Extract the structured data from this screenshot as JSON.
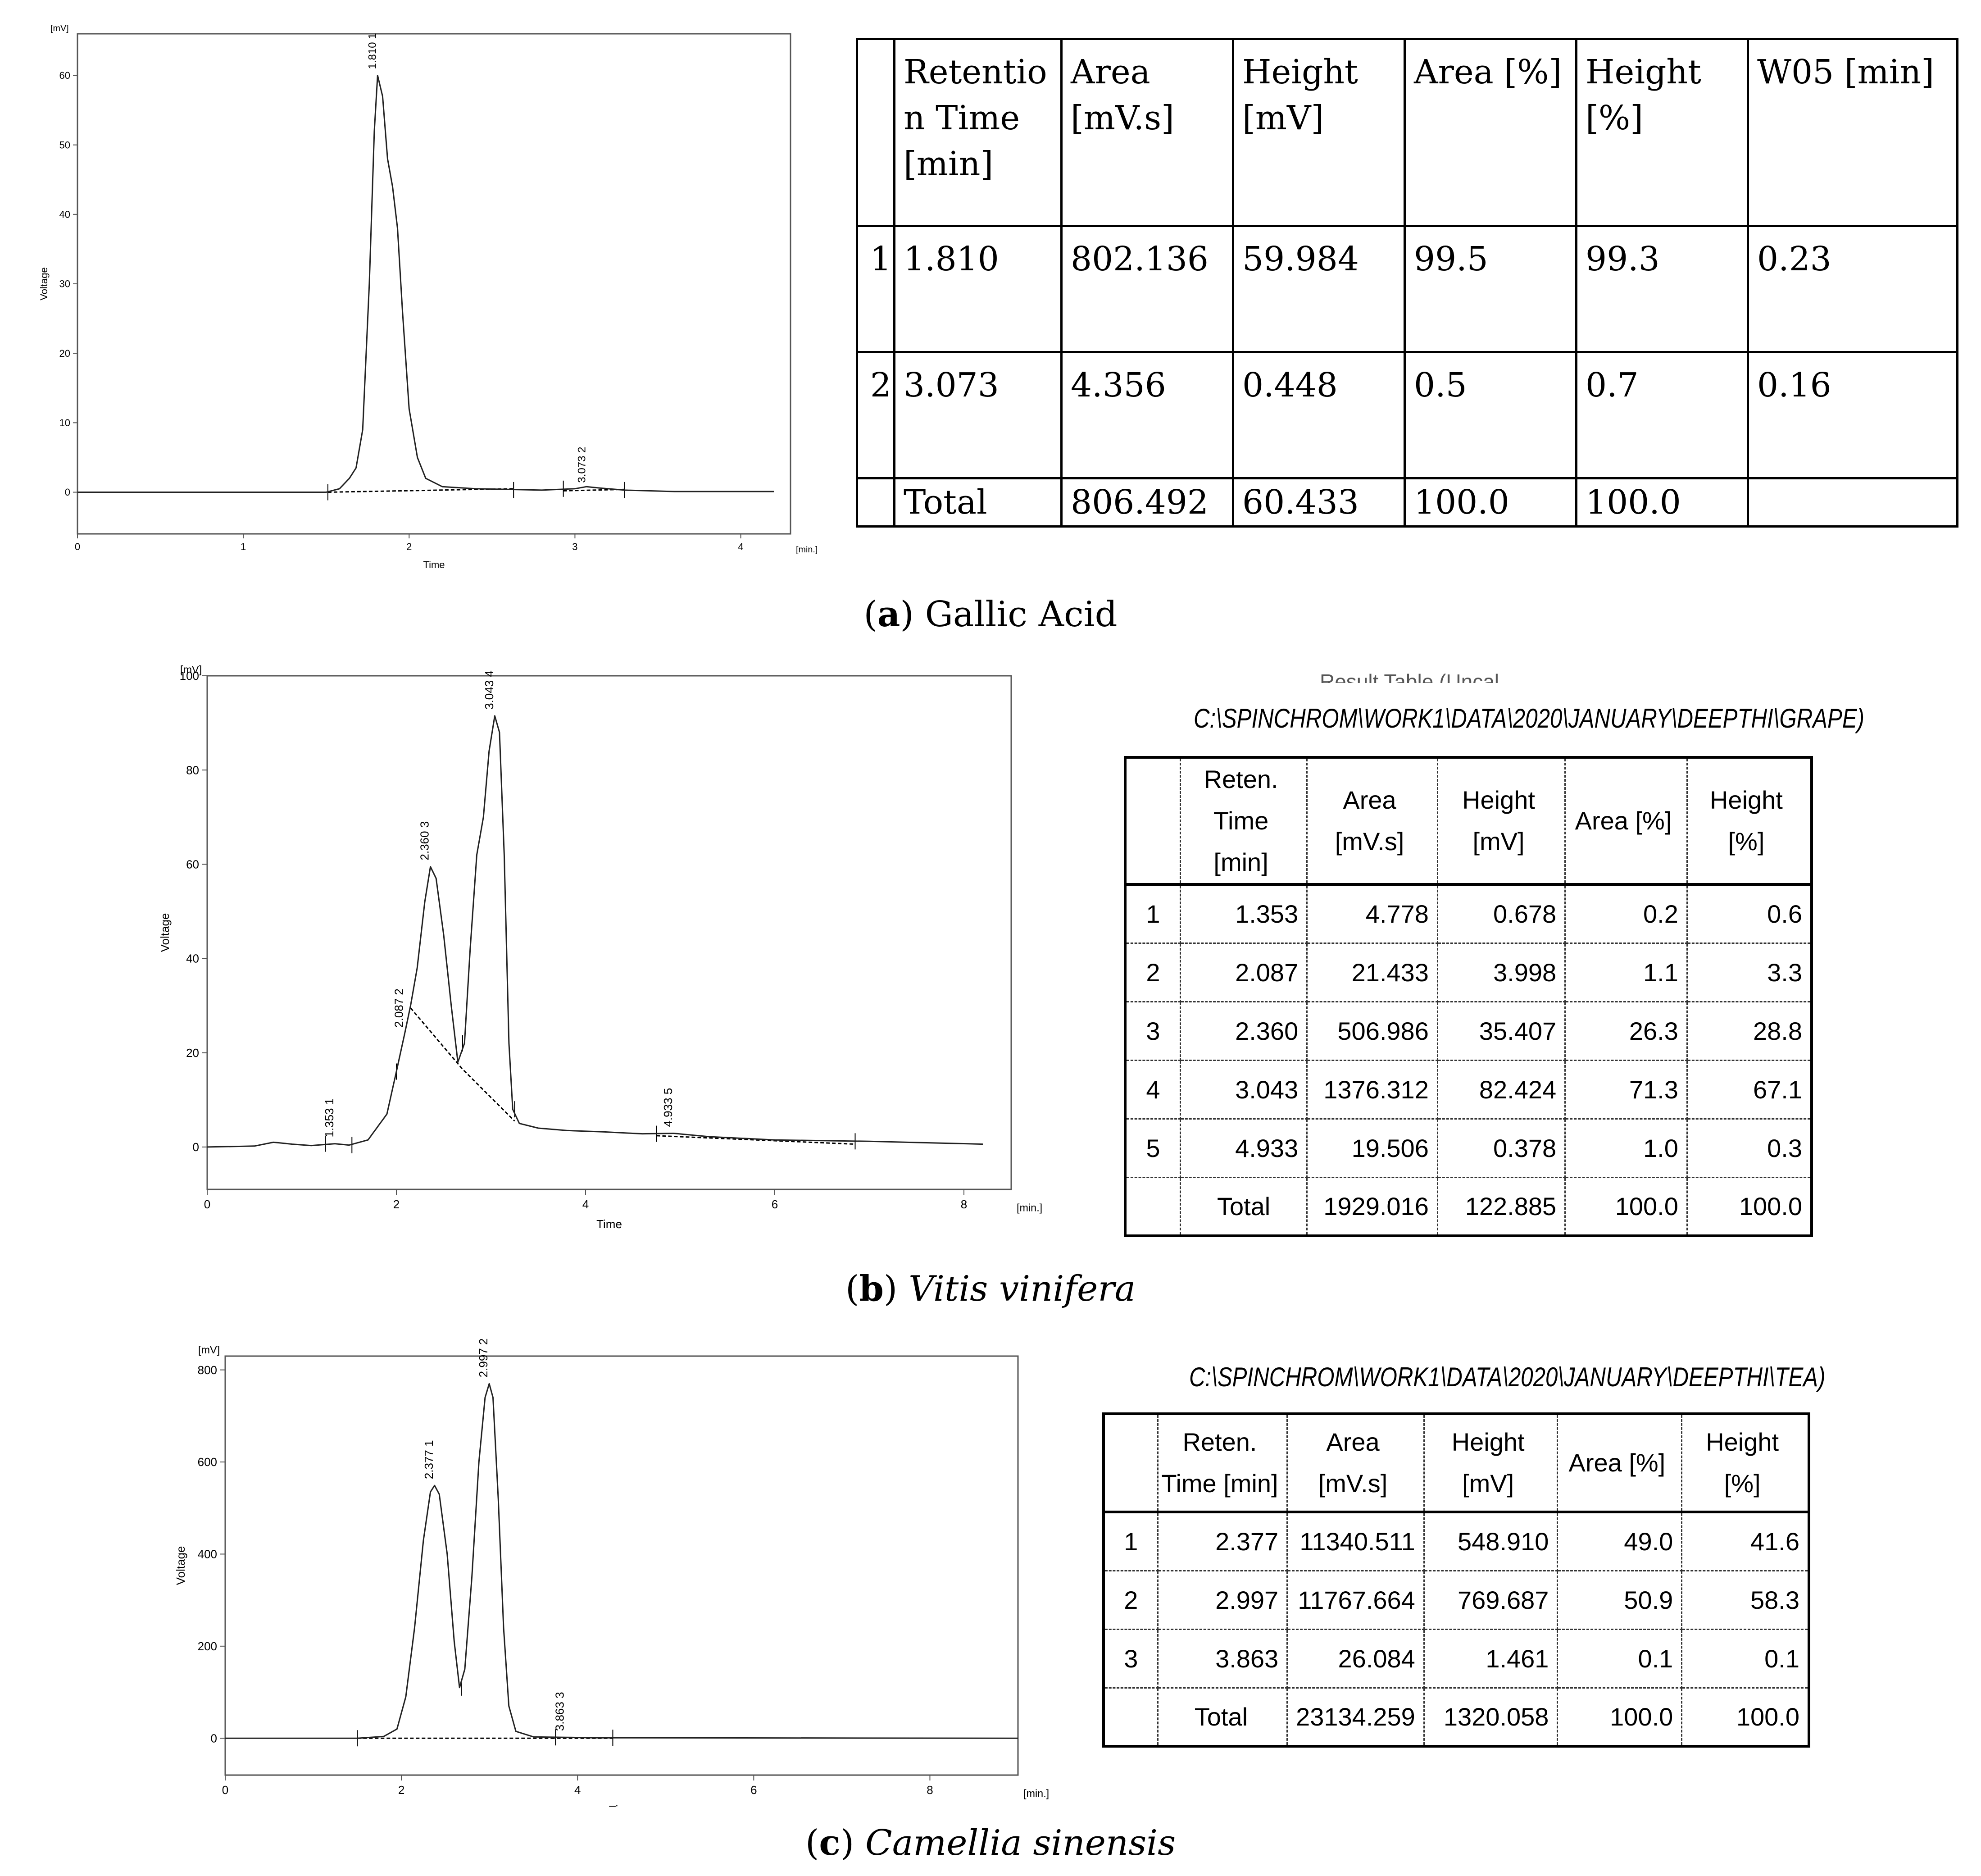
{
  "panels": [
    {
      "id": "a",
      "caption": {
        "letter": "a",
        "name": "Gallic Acid",
        "italic": false
      },
      "table": {
        "headers": [
          "",
          "Retentio n Time [min]",
          "Area [mV.s]",
          "Height [mV]",
          "Area [%]",
          "Height [%]",
          "W05 [min]"
        ],
        "rows": [
          [
            "1",
            "1.810",
            "802.136",
            "59.984",
            "99.5",
            "99.3",
            "0.23"
          ],
          [
            "2",
            "3.073",
            "4.356",
            "0.448",
            "0.5",
            "0.7",
            "0.16"
          ],
          [
            "",
            "Total",
            "806.492",
            "60.433",
            "100.0",
            "100.0",
            ""
          ]
        ]
      }
    },
    {
      "id": "b",
      "caption": {
        "letter": "b",
        "name": "Vitis vinifera",
        "italic": true
      },
      "table_path": "C:\\SPINCHROM\\WORK1\\DATA\\2020\\JANUARY\\DEEPTHI\\GRAPE)",
      "table_title_cut": "Result Table (Uncal",
      "table": {
        "headers": [
          "",
          "Reten. Time [min]",
          "Area [mV.s]",
          "Height [mV]",
          "Area [%]",
          "Height [%]"
        ],
        "rows": [
          [
            "1",
            "1.353",
            "4.778",
            "0.678",
            "0.2",
            "0.6"
          ],
          [
            "2",
            "2.087",
            "21.433",
            "3.998",
            "1.1",
            "3.3"
          ],
          [
            "3",
            "2.360",
            "506.986",
            "35.407",
            "26.3",
            "28.8"
          ],
          [
            "4",
            "3.043",
            "1376.312",
            "82.424",
            "71.3",
            "67.1"
          ],
          [
            "5",
            "4.933",
            "19.506",
            "0.378",
            "1.0",
            "0.3"
          ],
          [
            "",
            "Total",
            "1929.016",
            "122.885",
            "100.0",
            "100.0"
          ]
        ]
      }
    },
    {
      "id": "c",
      "caption": {
        "letter": "c",
        "name": "Camellia sinensis",
        "italic": true
      },
      "table_path": "C:\\SPINCHROM\\WORK1\\DATA\\2020\\JANUARY\\DEEPTHI\\TEA)",
      "table": {
        "headers": [
          "",
          "Reten. Time [min]",
          "Area [mV.s]",
          "Height [mV]",
          "Area [%]",
          "Height [%]"
        ],
        "rows": [
          [
            "1",
            "2.377",
            "11340.511",
            "548.910",
            "49.0",
            "41.6"
          ],
          [
            "2",
            "2.997",
            "11767.664",
            "769.687",
            "50.9",
            "58.3"
          ],
          [
            "3",
            "3.863",
            "26.084",
            "1.461",
            "0.1",
            "0.1"
          ],
          [
            "",
            "Total",
            "23134.259",
            "1320.058",
            "100.0",
            "100.0"
          ]
        ]
      }
    }
  ],
  "chart_data": [
    {
      "type": "line",
      "id": "a",
      "xlabel": "Time",
      "ylabel": "Voltage",
      "x_unit": "[min.]",
      "y_unit": "[mV]",
      "xlim": [
        0,
        4.3
      ],
      "ylim": [
        -6,
        66
      ],
      "xticks": [
        0,
        1,
        2,
        3,
        4
      ],
      "yticks": [
        0,
        10,
        20,
        30,
        40,
        50,
        60
      ],
      "trace": [
        [
          0,
          0
        ],
        [
          1.5,
          0
        ],
        [
          1.58,
          0.5
        ],
        [
          1.64,
          2
        ],
        [
          1.68,
          3.5
        ],
        [
          1.72,
          9
        ],
        [
          1.76,
          30
        ],
        [
          1.79,
          52
        ],
        [
          1.81,
          60
        ],
        [
          1.84,
          57
        ],
        [
          1.87,
          48
        ],
        [
          1.9,
          44
        ],
        [
          1.93,
          38
        ],
        [
          1.96,
          26
        ],
        [
          2.0,
          12
        ],
        [
          2.05,
          5
        ],
        [
          2.1,
          2
        ],
        [
          2.2,
          0.8
        ],
        [
          2.4,
          0.5
        ],
        [
          2.8,
          0.3
        ],
        [
          3.0,
          0.5
        ],
        [
          3.07,
          0.8
        ],
        [
          3.15,
          0.6
        ],
        [
          3.3,
          0.3
        ],
        [
          3.6,
          0.1
        ],
        [
          4.2,
          0.1
        ]
      ],
      "baselines": [
        [
          [
            1.51,
            0
          ],
          [
            2.63,
            0.5
          ]
        ],
        [
          [
            2.93,
            0.2
          ],
          [
            3.3,
            0.4
          ]
        ]
      ],
      "markers": [
        1.51,
        2.63,
        2.93,
        3.3
      ],
      "peaks": [
        {
          "x": 1.81,
          "y": 60,
          "label": "1.810 1"
        },
        {
          "x": 3.073,
          "y": 0.45,
          "label": "3.073 2"
        }
      ]
    },
    {
      "type": "line",
      "id": "b",
      "xlabel": "Time",
      "ylabel": "Voltage",
      "x_unit": "[min.]",
      "y_unit": "[mV]",
      "xlim": [
        0,
        8.5
      ],
      "ylim": [
        -9,
        100
      ],
      "xticks": [
        0,
        2,
        4,
        6,
        8
      ],
      "yticks": [
        0,
        20,
        40,
        60,
        80,
        100
      ],
      "ytick_labels": [
        "0",
        "20",
        "40",
        "60",
        "80",
        "100"
      ],
      "trace": [
        [
          0,
          0
        ],
        [
          0.5,
          0.2
        ],
        [
          0.7,
          1
        ],
        [
          0.9,
          0.6
        ],
        [
          1.1,
          0.3
        ],
        [
          1.35,
          0.7
        ],
        [
          1.5,
          0.4
        ],
        [
          1.7,
          1.5
        ],
        [
          1.9,
          7
        ],
        [
          2.0,
          16
        ],
        [
          2.087,
          24
        ],
        [
          2.15,
          30
        ],
        [
          2.22,
          38
        ],
        [
          2.3,
          52
        ],
        [
          2.36,
          59.5
        ],
        [
          2.42,
          57
        ],
        [
          2.5,
          45
        ],
        [
          2.58,
          30
        ],
        [
          2.65,
          18
        ],
        [
          2.72,
          22
        ],
        [
          2.78,
          42
        ],
        [
          2.85,
          62
        ],
        [
          2.92,
          70
        ],
        [
          2.98,
          84
        ],
        [
          3.04,
          91.5
        ],
        [
          3.09,
          88
        ],
        [
          3.14,
          62
        ],
        [
          3.19,
          22
        ],
        [
          3.23,
          8
        ],
        [
          3.3,
          5
        ],
        [
          3.5,
          4
        ],
        [
          3.8,
          3.5
        ],
        [
          4.2,
          3.2
        ],
        [
          4.6,
          2.8
        ],
        [
          4.93,
          2.9
        ],
        [
          5.3,
          2.2
        ],
        [
          6.0,
          1.5
        ],
        [
          7.0,
          1.2
        ],
        [
          8.2,
          0.6
        ]
      ],
      "baselines": [
        [
          [
            2.15,
            29.5
          ],
          [
            2.7,
            16.5
          ],
          [
            3.25,
            5.5
          ]
        ],
        [
          [
            4.75,
            2.4
          ],
          [
            6.85,
            0.6
          ]
        ]
      ],
      "markers": [
        1.25,
        1.53,
        2.0,
        2.7,
        3.25,
        4.75,
        6.85
      ],
      "peaks": [
        {
          "x": 1.353,
          "y": 0.7,
          "label": "1.353  1"
        },
        {
          "x": 2.087,
          "y": 24,
          "label": "2.087  2"
        },
        {
          "x": 2.36,
          "y": 59.5,
          "label": "2.360  3"
        },
        {
          "x": 3.043,
          "y": 91.5,
          "label": "3.043  4"
        },
        {
          "x": 4.933,
          "y": 2.9,
          "label": "4.933  5"
        }
      ]
    },
    {
      "type": "line",
      "id": "c",
      "xlabel": "Time",
      "ylabel": "Voltage",
      "x_unit": "[min.]",
      "y_unit": "[mV]",
      "xlim": [
        0,
        9
      ],
      "ylim": [
        -80,
        830
      ],
      "xticks": [
        0,
        2,
        4,
        6,
        8
      ],
      "yticks": [
        0,
        200,
        400,
        600,
        800
      ],
      "trace": [
        [
          0,
          0
        ],
        [
          1.5,
          0
        ],
        [
          1.8,
          4
        ],
        [
          1.95,
          20
        ],
        [
          2.05,
          90
        ],
        [
          2.15,
          240
        ],
        [
          2.25,
          430
        ],
        [
          2.33,
          535
        ],
        [
          2.377,
          549
        ],
        [
          2.43,
          530
        ],
        [
          2.52,
          400
        ],
        [
          2.6,
          210
        ],
        [
          2.66,
          110
        ],
        [
          2.72,
          150
        ],
        [
          2.8,
          350
        ],
        [
          2.88,
          600
        ],
        [
          2.95,
          740
        ],
        [
          2.997,
          770
        ],
        [
          3.04,
          740
        ],
        [
          3.1,
          520
        ],
        [
          3.16,
          240
        ],
        [
          3.22,
          70
        ],
        [
          3.3,
          15
        ],
        [
          3.5,
          3
        ],
        [
          3.863,
          2
        ],
        [
          4.2,
          1
        ],
        [
          9,
          0
        ]
      ],
      "baselines": [
        [
          [
            1.5,
            0
          ],
          [
            2.68,
            0
          ],
          [
            3.7,
            0
          ]
        ],
        [
          [
            3.7,
            0
          ],
          [
            4.4,
            0
          ]
        ]
      ],
      "markers": [
        1.5,
        2.68,
        3.75,
        4.4
      ],
      "peaks": [
        {
          "x": 2.377,
          "y": 549,
          "label": "2.377  1"
        },
        {
          "x": 2.997,
          "y": 770,
          "label": "2.997  2"
        },
        {
          "x": 3.863,
          "y": 2,
          "label": "3.863  3"
        }
      ]
    }
  ]
}
